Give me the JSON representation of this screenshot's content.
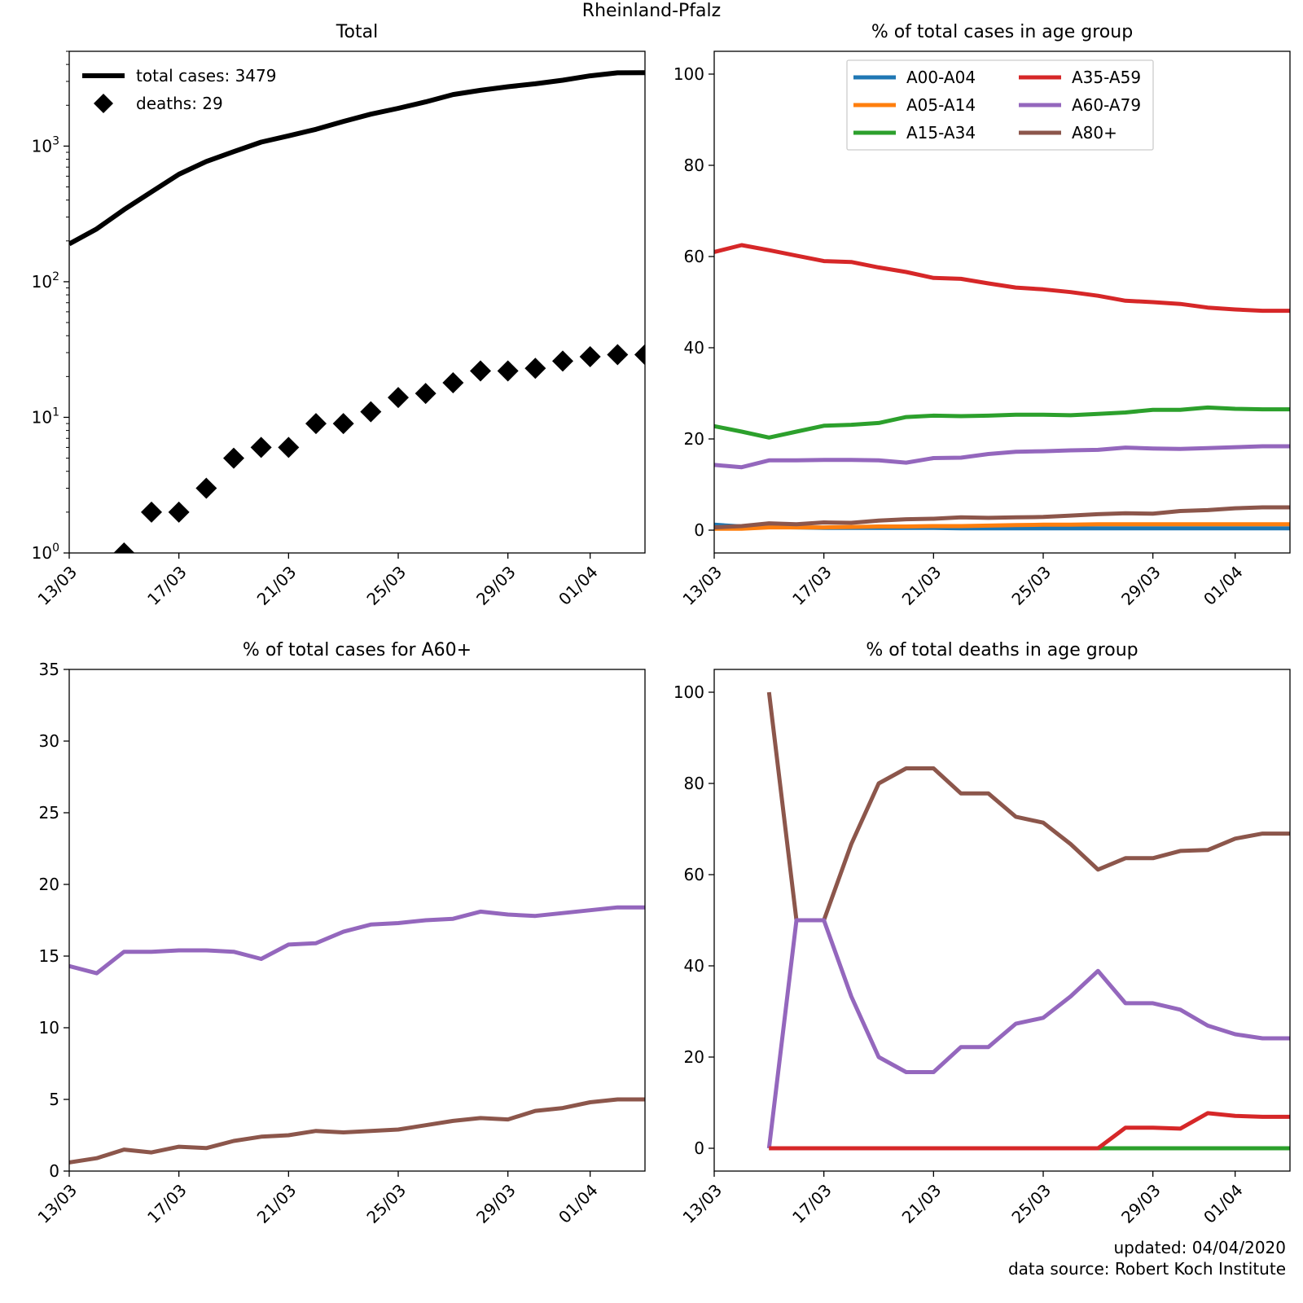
{
  "suptitle": "Rheinland-Pfalz",
  "footer": {
    "updated": "updated: 04/04/2020",
    "source": "data source: Robert Koch Institute"
  },
  "chart_data": [
    {
      "type": "line",
      "title": "Total",
      "yscale": "log",
      "ylim": [
        1,
        5000
      ],
      "x_ticks": [
        "13/03",
        "17/03",
        "21/03",
        "25/03",
        "29/03",
        "01/04"
      ],
      "x": [
        "2020-03-13",
        "2020-03-14",
        "2020-03-15",
        "2020-03-16",
        "2020-03-17",
        "2020-03-18",
        "2020-03-19",
        "2020-03-20",
        "2020-03-21",
        "2020-03-22",
        "2020-03-23",
        "2020-03-24",
        "2020-03-25",
        "2020-03-26",
        "2020-03-27",
        "2020-03-28",
        "2020-03-29",
        "2020-03-30",
        "2020-03-31",
        "2020-04-01",
        "2020-04-02",
        "2020-04-03"
      ],
      "y_tick_labels": [
        {
          "base": "10",
          "exp": "0"
        },
        {
          "base": "10",
          "exp": "1"
        },
        {
          "base": "10",
          "exp": "2"
        },
        {
          "base": "10",
          "exp": "3"
        }
      ],
      "legend_position": "upper-left",
      "series": [
        {
          "name": "total cases: 3479",
          "style": "line",
          "color": "#000000",
          "values": [
            190,
            245,
            340,
            460,
            620,
            770,
            910,
            1070,
            1190,
            1330,
            1520,
            1720,
            1900,
            2120,
            2400,
            2580,
            2740,
            2880,
            3060,
            3300,
            3470,
            3479
          ]
        },
        {
          "name": "deaths: 29",
          "style": "diamond",
          "color": "#000000",
          "values": [
            null,
            null,
            1,
            2,
            2,
            3,
            5,
            6,
            6,
            9,
            9,
            11,
            14,
            15,
            18,
            22,
            22,
            23,
            26,
            28,
            29,
            29
          ]
        }
      ]
    },
    {
      "type": "line",
      "title": "% of total cases in age group",
      "ylim": [
        -5,
        105
      ],
      "y_ticks": [
        0,
        20,
        40,
        60,
        80,
        100
      ],
      "x_ticks": [
        "13/03",
        "17/03",
        "21/03",
        "25/03",
        "29/03",
        "01/04"
      ],
      "x": [
        "2020-03-13",
        "2020-03-14",
        "2020-03-15",
        "2020-03-16",
        "2020-03-17",
        "2020-03-18",
        "2020-03-19",
        "2020-03-20",
        "2020-03-21",
        "2020-03-22",
        "2020-03-23",
        "2020-03-24",
        "2020-03-25",
        "2020-03-26",
        "2020-03-27",
        "2020-03-28",
        "2020-03-29",
        "2020-03-30",
        "2020-03-31",
        "2020-04-01",
        "2020-04-02",
        "2020-04-03"
      ],
      "legend_position": "upper-center",
      "legend_columns": 2,
      "series": [
        {
          "name": "A00-A04",
          "color": "#1f77b4",
          "values": [
            1.2,
            0.8,
            0.7,
            0.6,
            0.5,
            0.5,
            0.5,
            0.5,
            0.5,
            0.4,
            0.4,
            0.4,
            0.4,
            0.4,
            0.4,
            0.4,
            0.4,
            0.4,
            0.4,
            0.4,
            0.4,
            0.4
          ]
        },
        {
          "name": "A05-A14",
          "color": "#ff7f0e",
          "values": [
            0.3,
            0.3,
            0.6,
            0.6,
            0.6,
            0.7,
            0.8,
            0.8,
            0.9,
            0.9,
            1.0,
            1.1,
            1.2,
            1.2,
            1.3,
            1.3,
            1.3,
            1.3,
            1.3,
            1.3,
            1.3,
            1.3
          ]
        },
        {
          "name": "A15-A34",
          "color": "#2ca02c",
          "values": [
            22.8,
            21.6,
            20.3,
            21.6,
            22.9,
            23.1,
            23.5,
            24.8,
            25.1,
            25.0,
            25.1,
            25.3,
            25.3,
            25.2,
            25.5,
            25.8,
            26.4,
            26.4,
            26.9,
            26.6,
            26.5,
            26.5
          ]
        },
        {
          "name": "A35-A59",
          "color": "#d62728",
          "values": [
            61.0,
            62.5,
            61.4,
            60.2,
            59.0,
            58.8,
            57.6,
            56.6,
            55.3,
            55.1,
            54.1,
            53.2,
            52.8,
            52.2,
            51.4,
            50.3,
            50.0,
            49.6,
            48.8,
            48.4,
            48.1,
            48.1
          ]
        },
        {
          "name": "A60-A79",
          "color": "#9467bd",
          "values": [
            14.3,
            13.8,
            15.3,
            15.3,
            15.4,
            15.4,
            15.3,
            14.8,
            15.8,
            15.9,
            16.7,
            17.2,
            17.3,
            17.5,
            17.6,
            18.1,
            17.9,
            17.8,
            18.0,
            18.2,
            18.4,
            18.4
          ]
        },
        {
          "name": "A80+",
          "color": "#8c564b",
          "values": [
            0.6,
            0.9,
            1.5,
            1.3,
            1.7,
            1.6,
            2.1,
            2.4,
            2.5,
            2.8,
            2.7,
            2.8,
            2.9,
            3.2,
            3.5,
            3.7,
            3.6,
            4.2,
            4.4,
            4.8,
            5.0,
            5.0
          ]
        }
      ]
    },
    {
      "type": "line",
      "title": "% of total cases for A60+",
      "ylim": [
        0,
        35
      ],
      "y_ticks": [
        0,
        5,
        10,
        15,
        20,
        25,
        30,
        35
      ],
      "x_ticks": [
        "13/03",
        "17/03",
        "21/03",
        "25/03",
        "29/03",
        "01/04"
      ],
      "x": [
        "2020-03-13",
        "2020-03-14",
        "2020-03-15",
        "2020-03-16",
        "2020-03-17",
        "2020-03-18",
        "2020-03-19",
        "2020-03-20",
        "2020-03-21",
        "2020-03-22",
        "2020-03-23",
        "2020-03-24",
        "2020-03-25",
        "2020-03-26",
        "2020-03-27",
        "2020-03-28",
        "2020-03-29",
        "2020-03-30",
        "2020-03-31",
        "2020-04-01",
        "2020-04-02",
        "2020-04-03"
      ],
      "series": [
        {
          "color": "#9467bd",
          "values": [
            14.3,
            13.8,
            15.3,
            15.3,
            15.4,
            15.4,
            15.3,
            14.8,
            15.8,
            15.9,
            16.7,
            17.2,
            17.3,
            17.5,
            17.6,
            18.1,
            17.9,
            17.8,
            18.0,
            18.2,
            18.4,
            18.4
          ]
        },
        {
          "color": "#8c564b",
          "values": [
            0.6,
            0.9,
            1.5,
            1.3,
            1.7,
            1.6,
            2.1,
            2.4,
            2.5,
            2.8,
            2.7,
            2.8,
            2.9,
            3.2,
            3.5,
            3.7,
            3.6,
            4.2,
            4.4,
            4.8,
            5.0,
            5.0
          ]
        }
      ]
    },
    {
      "type": "line",
      "title": "% of total deaths in age group",
      "ylim": [
        -5,
        105
      ],
      "y_ticks": [
        0,
        20,
        40,
        60,
        80,
        100
      ],
      "x_ticks": [
        "13/03",
        "17/03",
        "21/03",
        "25/03",
        "29/03",
        "01/04"
      ],
      "x": [
        "2020-03-13",
        "2020-03-14",
        "2020-03-15",
        "2020-03-16",
        "2020-03-17",
        "2020-03-18",
        "2020-03-19",
        "2020-03-20",
        "2020-03-21",
        "2020-03-22",
        "2020-03-23",
        "2020-03-24",
        "2020-03-25",
        "2020-03-26",
        "2020-03-27",
        "2020-03-28",
        "2020-03-29",
        "2020-03-30",
        "2020-03-31",
        "2020-04-01",
        "2020-04-02",
        "2020-04-03"
      ],
      "series": [
        {
          "color": "#2ca02c",
          "values": [
            null,
            null,
            0,
            0,
            0,
            0,
            0,
            0,
            0,
            0,
            0,
            0,
            0,
            0,
            0,
            0,
            0,
            0,
            0,
            0,
            0,
            0
          ]
        },
        {
          "color": "#8c564b",
          "values": [
            null,
            null,
            100,
            50,
            50,
            66.7,
            80,
            83.3,
            83.3,
            77.8,
            77.8,
            72.7,
            71.4,
            66.7,
            61.1,
            63.6,
            63.6,
            65.2,
            65.4,
            67.9,
            69.0,
            69.0
          ]
        },
        {
          "color": "#9467bd",
          "values": [
            null,
            null,
            0,
            50,
            50,
            33.3,
            20,
            16.7,
            16.7,
            22.2,
            22.2,
            27.3,
            28.6,
            33.3,
            38.9,
            31.8,
            31.8,
            30.4,
            26.9,
            25.0,
            24.1,
            24.1
          ]
        },
        {
          "color": "#d62728",
          "values": [
            null,
            null,
            0,
            0,
            0,
            0,
            0,
            0,
            0,
            0,
            0,
            0,
            0,
            0,
            0,
            4.5,
            4.5,
            4.3,
            7.7,
            7.1,
            6.9,
            6.9
          ]
        }
      ]
    }
  ]
}
